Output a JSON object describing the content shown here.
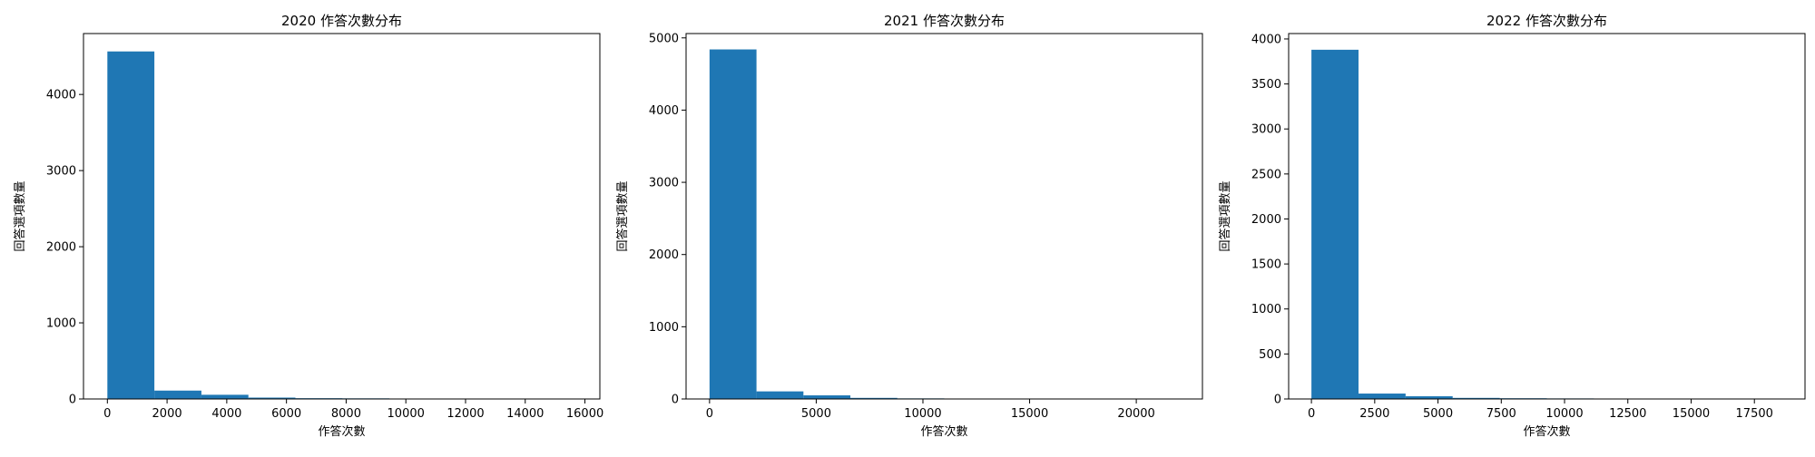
{
  "chart_data": [
    {
      "type": "bar",
      "title": "2020 作答次數分布",
      "xlabel": "作答次數",
      "ylabel": "回答選項數量",
      "xlim": [
        -800,
        16500
      ],
      "ylim": [
        0,
        4800
      ],
      "xticks": [
        0,
        2000,
        4000,
        6000,
        8000,
        10000,
        12000,
        14000,
        16000
      ],
      "yticks": [
        0,
        1000,
        2000,
        3000,
        4000
      ],
      "bins": [
        {
          "x0": 0,
          "x1": 1575,
          "value": 4565
        },
        {
          "x0": 1575,
          "x1": 3150,
          "value": 110
        },
        {
          "x0": 3150,
          "x1": 4725,
          "value": 55
        },
        {
          "x0": 4725,
          "x1": 6300,
          "value": 18
        },
        {
          "x0": 6300,
          "x1": 7875,
          "value": 10
        },
        {
          "x0": 7875,
          "x1": 9450,
          "value": 8
        },
        {
          "x0": 9450,
          "x1": 11025,
          "value": 4
        },
        {
          "x0": 11025,
          "x1": 12600,
          "value": 5
        },
        {
          "x0": 12600,
          "x1": 14175,
          "value": 2
        },
        {
          "x0": 14175,
          "x1": 15750,
          "value": 3
        }
      ],
      "color": "#1f77b4",
      "grid": false
    },
    {
      "type": "bar",
      "title": "2021 作答次數分布",
      "xlabel": "作答次數",
      "ylabel": "回答選項數量",
      "xlim": [
        -1100,
        23100
      ],
      "ylim": [
        0,
        5060
      ],
      "xticks": [
        0,
        5000,
        10000,
        15000,
        20000
      ],
      "yticks": [
        0,
        1000,
        2000,
        3000,
        4000,
        5000
      ],
      "bins": [
        {
          "x0": 0,
          "x1": 2200,
          "value": 4840
        },
        {
          "x0": 2200,
          "x1": 4400,
          "value": 105
        },
        {
          "x0": 4400,
          "x1": 6600,
          "value": 50
        },
        {
          "x0": 6600,
          "x1": 8800,
          "value": 15
        },
        {
          "x0": 8800,
          "x1": 11000,
          "value": 8
        },
        {
          "x0": 11000,
          "x1": 13200,
          "value": 6
        },
        {
          "x0": 13200,
          "x1": 15400,
          "value": 3
        },
        {
          "x0": 15400,
          "x1": 17600,
          "value": 4
        },
        {
          "x0": 17600,
          "x1": 19800,
          "value": 2
        },
        {
          "x0": 19800,
          "x1": 22000,
          "value": 3
        }
      ],
      "color": "#1f77b4",
      "grid": false
    },
    {
      "type": "bar",
      "title": "2022 作答次數分布",
      "xlabel": "作答次數",
      "ylabel": "回答選項數量",
      "xlim": [
        -900,
        19500
      ],
      "ylim": [
        0,
        4060
      ],
      "xticks": [
        0,
        2500,
        5000,
        7500,
        10000,
        12500,
        15000,
        17500
      ],
      "yticks": [
        0,
        500,
        1000,
        1500,
        2000,
        2500,
        3000,
        3500,
        4000
      ],
      "bins": [
        {
          "x0": 0,
          "x1": 1860,
          "value": 3880
        },
        {
          "x0": 1860,
          "x1": 3720,
          "value": 60
        },
        {
          "x0": 3720,
          "x1": 5580,
          "value": 30
        },
        {
          "x0": 5580,
          "x1": 7440,
          "value": 12
        },
        {
          "x0": 7440,
          "x1": 9300,
          "value": 8
        },
        {
          "x0": 9300,
          "x1": 11160,
          "value": 6
        },
        {
          "x0": 11160,
          "x1": 13020,
          "value": 4
        },
        {
          "x0": 13020,
          "x1": 14880,
          "value": 3
        },
        {
          "x0": 14880,
          "x1": 16740,
          "value": 2
        },
        {
          "x0": 16740,
          "x1": 18600,
          "value": 1
        }
      ],
      "color": "#1f77b4",
      "grid": false
    }
  ]
}
